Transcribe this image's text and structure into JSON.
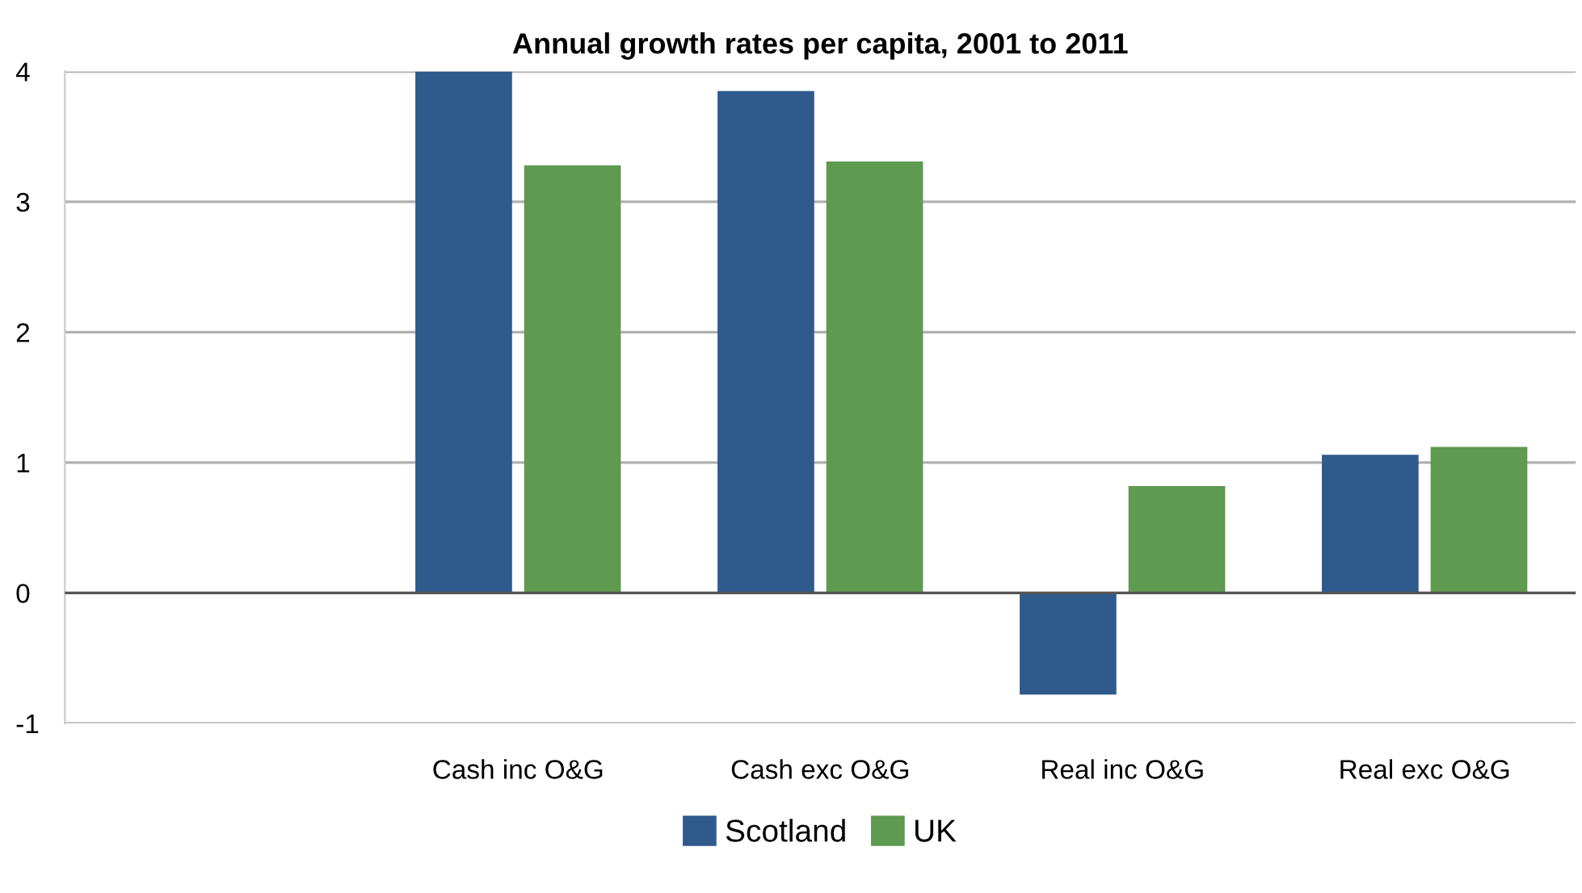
{
  "chart_data": {
    "type": "bar",
    "title": "Annual growth rates per capita, 2001 to 2011",
    "categories": [
      null,
      "Cash inc O&G",
      "Cash exc O&G",
      "Real inc O&G",
      "Real exc O&G"
    ],
    "series": [
      {
        "name": "Scotland",
        "color": "#2f5a8c",
        "values": [
          null,
          4.0,
          3.85,
          -0.78,
          1.06
        ]
      },
      {
        "name": "UK",
        "color": "#5e9a4f",
        "values": [
          null,
          3.28,
          3.31,
          0.82,
          1.12
        ]
      }
    ],
    "ylim": [
      -1,
      4
    ],
    "yticks": [
      {
        "value": -1,
        "label": "-1"
      },
      0,
      1,
      2,
      3,
      4
    ],
    "grid": "y",
    "legend": "bottom"
  }
}
